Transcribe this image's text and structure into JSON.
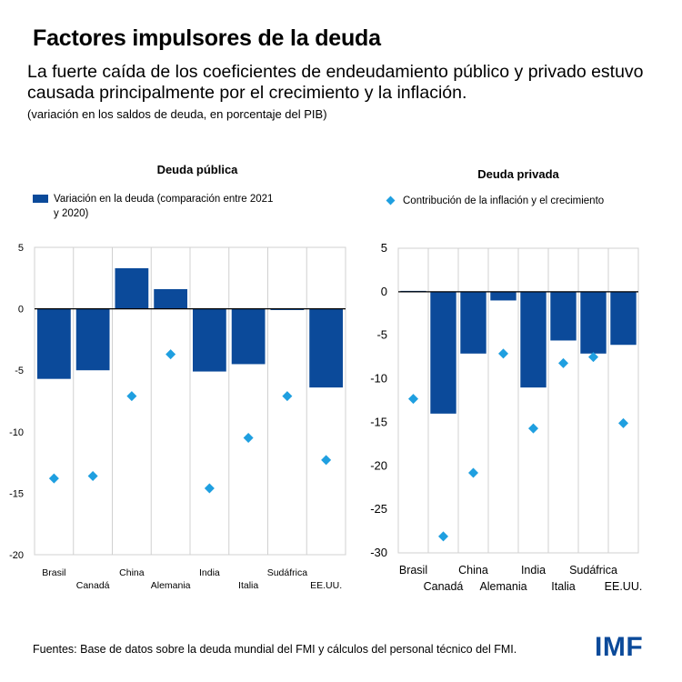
{
  "title": "Factores impulsores de la deuda",
  "subtitle": "La fuerte caída de los coeficientes de endeudamiento público y privado estuvo causada principalmente por el crecimiento y la inflación.",
  "note": "(variación en los saldos de deuda, en porcentaje del PIB)",
  "sources": "Fuentes: Base de datos sobre la deuda mundial del FMI y cálculos del personal técnico del FMI.",
  "logo": "IMF",
  "colors": {
    "bar": "#0b4a9a",
    "diamond": "#1f9fe0",
    "grid": "#d0d0d0"
  },
  "chart_data": [
    {
      "type": "bar",
      "title": "Deuda pública",
      "legend": "Variación en la deuda (comparación entre 2021 y 2020)",
      "categories": [
        "Brasil",
        "Canadá",
        "China",
        "Alemania",
        "India",
        "Italia",
        "Sudáfrica",
        "EE.UU."
      ],
      "series": [
        {
          "name": "Variación en la deuda (comparación entre 2021 y 2020)",
          "type": "bar",
          "values": [
            -5.7,
            -5.0,
            3.3,
            1.6,
            -5.1,
            -4.5,
            -0.1,
            -6.4
          ]
        },
        {
          "name": "Contribución de la inflación y el crecimiento",
          "type": "scatter",
          "values": [
            -13.8,
            -13.6,
            -7.1,
            -3.7,
            -14.6,
            -10.5,
            -7.1,
            -12.3
          ]
        }
      ],
      "ylim": [
        -20,
        5
      ],
      "yticks": [
        5,
        0,
        -5,
        -10,
        -15,
        -20
      ],
      "grid": true
    },
    {
      "type": "bar",
      "title": "Deuda privada",
      "legend": "Contribución de la inflación y el crecimiento",
      "categories": [
        "Brasil",
        "Canadá",
        "China",
        "Alemania",
        "India",
        "Italia",
        "Sudáfrica",
        "EE.UU."
      ],
      "series": [
        {
          "name": "Variación en la deuda (comparación entre 2021 y 2020)",
          "type": "bar",
          "values": [
            0.1,
            -14.0,
            -7.1,
            -1.0,
            -11.0,
            -5.6,
            -7.1,
            -6.1
          ]
        },
        {
          "name": "Contribución de la inflación y el crecimiento",
          "type": "scatter",
          "values": [
            -12.3,
            -28.1,
            -20.8,
            -7.1,
            -15.7,
            -8.2,
            -7.5,
            -15.1
          ]
        }
      ],
      "ylim": [
        -30,
        5
      ],
      "yticks": [
        5,
        0,
        -5,
        -10,
        -15,
        -20,
        -25,
        -30
      ],
      "grid": true
    }
  ]
}
